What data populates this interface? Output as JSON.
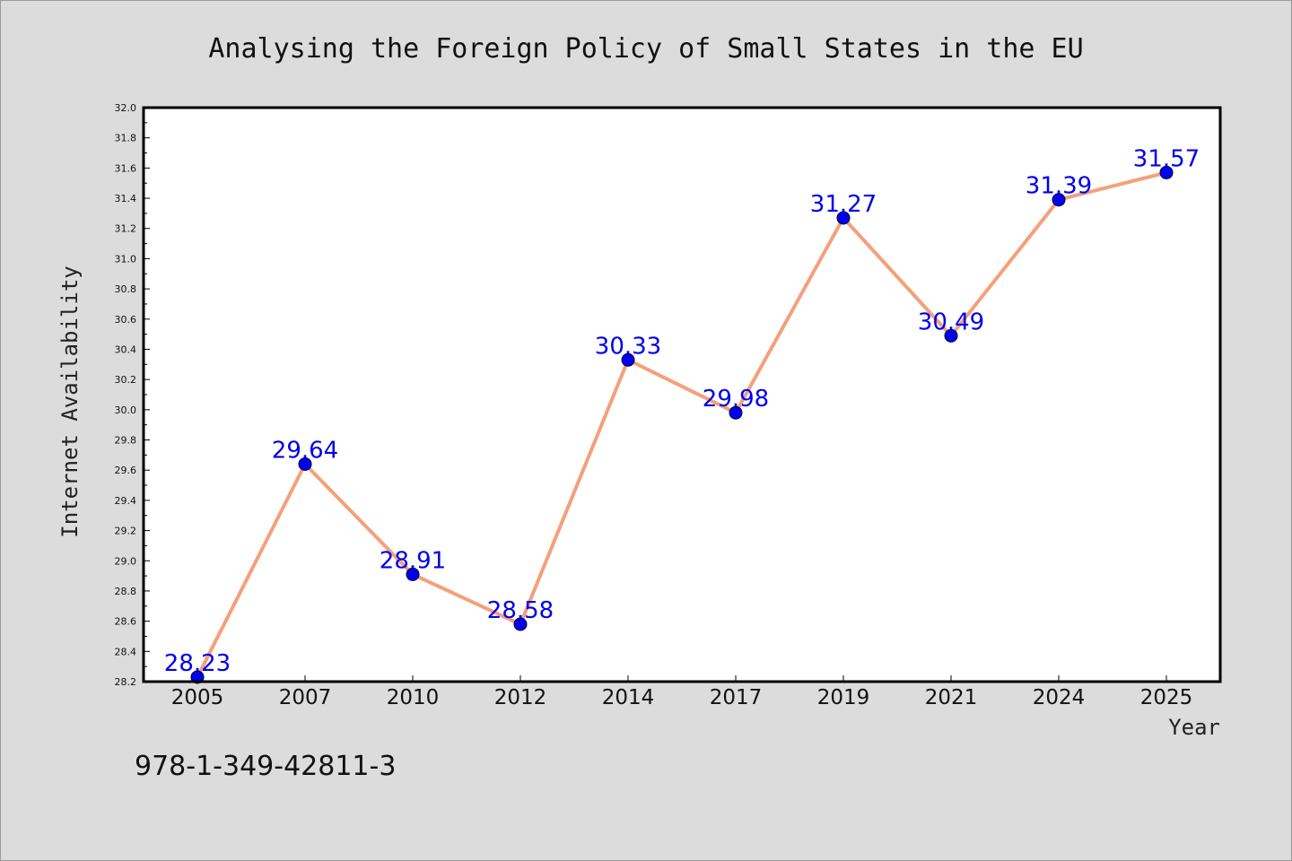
{
  "chart_data": {
    "type": "line",
    "title": "Analysing the Foreign Policy of Small States in the EU",
    "xlabel": "Year",
    "ylabel": "Internet Availability",
    "categories": [
      "2005",
      "2007",
      "2010",
      "2012",
      "2014",
      "2017",
      "2019",
      "2021",
      "2024",
      "2025"
    ],
    "values": [
      28.23,
      29.64,
      28.91,
      28.58,
      30.33,
      29.98,
      31.27,
      30.49,
      31.39,
      31.57
    ],
    "data_labels": [
      "28.23",
      "29.64",
      "28.91",
      "28.58",
      "30.33",
      "29.98",
      "31.27",
      "30.49",
      "31.39",
      "31.57"
    ],
    "ylim": [
      28.2,
      32.0
    ],
    "yticks": [
      "28.2",
      "28.4",
      "28.6",
      "28.8",
      "29.0",
      "29.2",
      "29.4",
      "29.6",
      "29.8",
      "30.0",
      "30.2",
      "30.4",
      "30.6",
      "30.8",
      "31.0",
      "31.2",
      "31.4",
      "31.6",
      "31.8",
      "32.0"
    ],
    "grid": false,
    "legend": "none",
    "colors": {
      "line": "#f4a07c",
      "marker": "#0000ee",
      "label": "#0000ee",
      "background": "#dcdcdc",
      "plot_background": "#ffffff"
    }
  },
  "footer": {
    "isbn": "978-1-349-42811-3"
  }
}
